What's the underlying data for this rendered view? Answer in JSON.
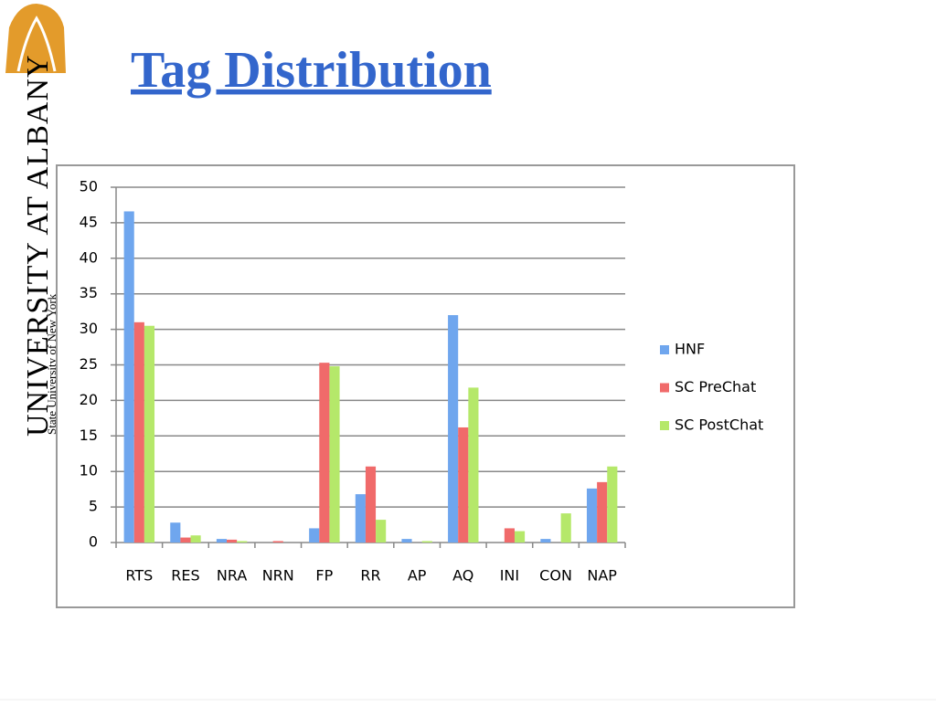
{
  "logo": {
    "name": "UNIVERSITY AT ALBANY",
    "subtitle": "State University of New York"
  },
  "chart_data": {
    "type": "bar",
    "title": "Tag Distribution",
    "categories": [
      "RTS",
      "RES",
      "NRA",
      "NRN",
      "FP",
      "RR",
      "AP",
      "AQ",
      "INI",
      "CON",
      "NAP"
    ],
    "series": [
      {
        "name": "HNF",
        "color": "#6fa6ee",
        "values": [
          46.6,
          2.8,
          0.5,
          0,
          2.0,
          6.8,
          0.5,
          32,
          0,
          0.5,
          7.6
        ]
      },
      {
        "name": "SC PreChat",
        "color": "#f06a6a",
        "values": [
          31,
          0.7,
          0.4,
          0.2,
          25.3,
          10.7,
          0,
          16.2,
          2.0,
          0,
          8.5
        ]
      },
      {
        "name": "SC PostChat",
        "color": "#b5e86a",
        "values": [
          30.5,
          1.0,
          0.2,
          0,
          24.8,
          3.2,
          0.2,
          21.8,
          1.6,
          4.1,
          10.7
        ]
      }
    ],
    "ylim": [
      0,
      50
    ],
    "yticks": [
      0,
      5,
      10,
      15,
      20,
      25,
      30,
      35,
      40,
      45,
      50
    ],
    "grid": true,
    "legend": "right"
  }
}
